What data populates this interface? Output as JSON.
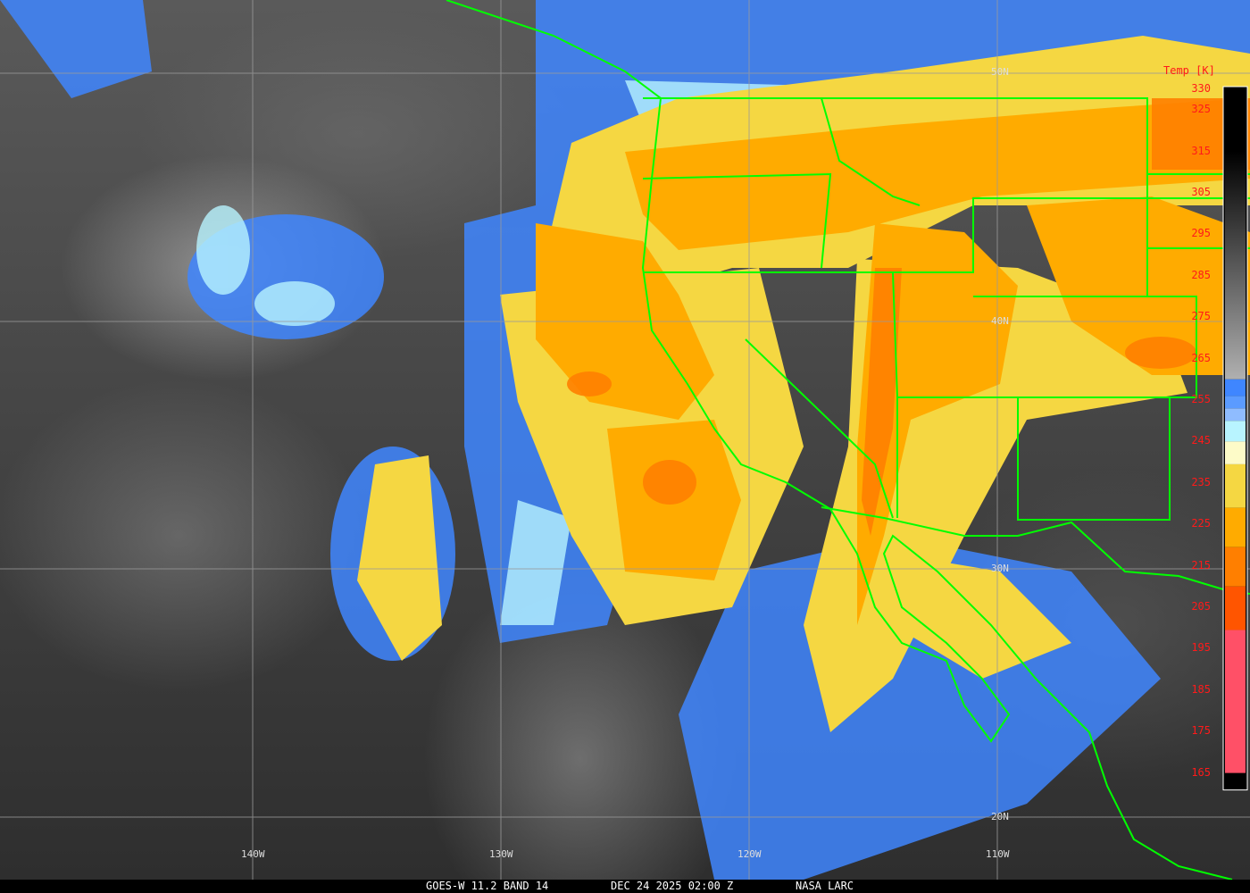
{
  "caption": {
    "satellite": "GOES-W 11.2 BAND 14",
    "datetime": "DEC 24 2025 02:00 Z",
    "source": "NASA LARC"
  },
  "grid": {
    "lat_labels": [
      "50N",
      "40N",
      "30N",
      "20N"
    ],
    "lon_labels": [
      "140W",
      "130W",
      "120W",
      "110W"
    ]
  },
  "colorbar": {
    "title": "Temp [K]",
    "range_k": [
      165,
      330
    ],
    "ticks": [
      "330",
      "325",
      "315",
      "305",
      "295",
      "285",
      "275",
      "265",
      "255",
      "245",
      "235",
      "225",
      "215",
      "205",
      "195",
      "185",
      "175",
      "165"
    ],
    "segments": [
      {
        "from": 330,
        "to": 315,
        "color": "#000000"
      },
      {
        "from": 315,
        "to": 260,
        "color": "gradient:#000000-#b0b0b0"
      },
      {
        "from": 260,
        "to": 256,
        "color": "#3f86ff"
      },
      {
        "from": 256,
        "to": 253,
        "color": "#5b9bff"
      },
      {
        "from": 253,
        "to": 250,
        "color": "#8fbcff"
      },
      {
        "from": 250,
        "to": 245,
        "color": "#b8f4ff"
      },
      {
        "from": 245,
        "to": 239.5,
        "color": "#fdfbc8"
      },
      {
        "from": 239.5,
        "to": 229,
        "color": "#f5d742"
      },
      {
        "from": 229,
        "to": 219.5,
        "color": "#ffab00"
      },
      {
        "from": 219.5,
        "to": 210,
        "color": "#ff7f00"
      },
      {
        "from": 210,
        "to": 199.5,
        "color": "#ff5500"
      },
      {
        "from": 199.5,
        "to": 165,
        "color": "#ff5067"
      }
    ]
  },
  "colors": {
    "borders": "#00ff00",
    "grid": "#9a9a9a",
    "labels": "#ff1a1a"
  }
}
